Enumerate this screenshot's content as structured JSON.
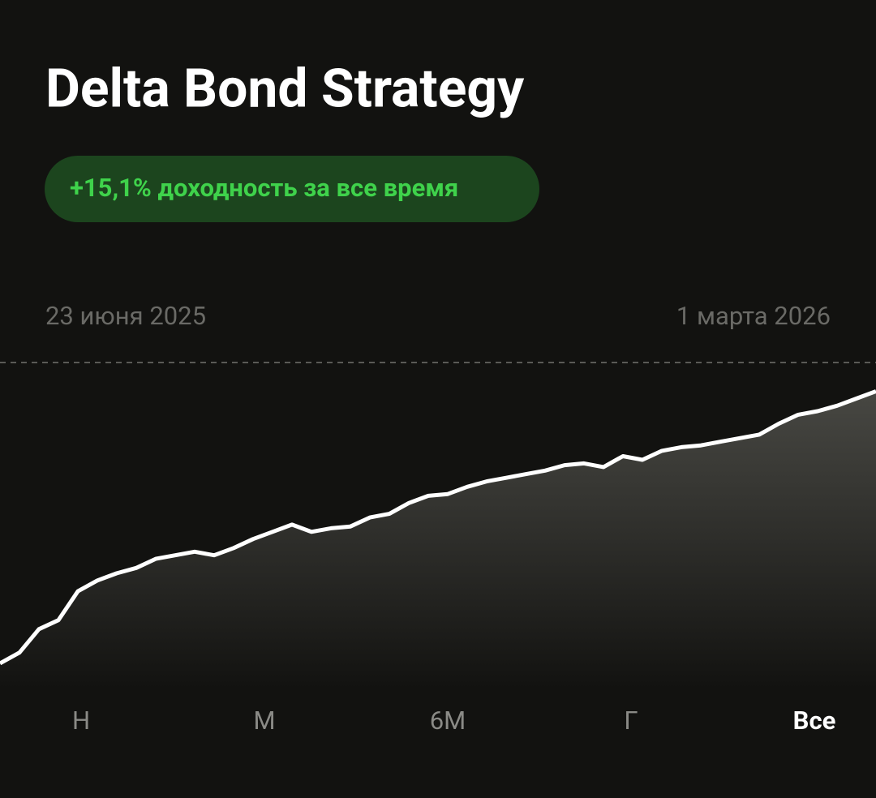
{
  "header": {
    "title": "Delta Bond Strategy",
    "badge": "+15,1% доходность за все время"
  },
  "chart_data": {
    "type": "line",
    "start_label": "23 июня 2025",
    "end_label": "1 марта 2026",
    "color": "#ffffff",
    "values": [
      0,
      0.6,
      1.9,
      2.4,
      4.0,
      4.6,
      5.0,
      5.3,
      5.8,
      6.0,
      6.2,
      6.0,
      6.4,
      6.9,
      7.3,
      7.7,
      7.3,
      7.5,
      7.6,
      8.1,
      8.3,
      8.9,
      9.3,
      9.4,
      9.8,
      10.1,
      10.3,
      10.5,
      10.7,
      11.0,
      11.1,
      10.9,
      11.5,
      11.3,
      11.8,
      12.0,
      12.1,
      12.3,
      12.5,
      12.7,
      13.3,
      13.8,
      14.0,
      14.3,
      14.7,
      15.1
    ],
    "ylim": [
      0,
      16.7
    ]
  },
  "periods": [
    "Н",
    "М",
    "6М",
    "Г",
    "Все"
  ],
  "selected_period": 4
}
